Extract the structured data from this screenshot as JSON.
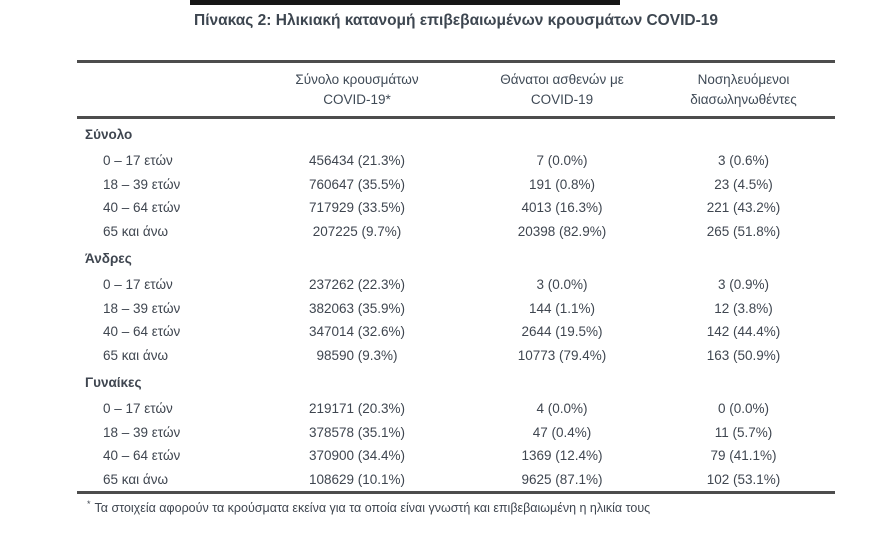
{
  "page": {
    "title": "Πίνακας 2: Ηλικιακή κατανομή επιβεβαιωμένων κρουσμάτων COVID-19",
    "footnote_marker": "*",
    "footnote": "Τα στοιχεία αφορούν τα κρούσματα εκείνα για τα οποία είναι γνωστή και επιβεβαιωμένη η ηλικία τους"
  },
  "colors": {
    "text": "#3f4650",
    "rule": "#4d4d4d",
    "top_bar": "#161616",
    "background": "#ffffff"
  },
  "table": {
    "columns": [
      {
        "line1": "Σύνολο κρουσμάτων",
        "line2": "COVID-19*"
      },
      {
        "line1": "Θάνατοι ασθενών με",
        "line2": "COVID-19"
      },
      {
        "line1": "Νοσηλευόμενοι",
        "line2": "διασωληνωθέντες"
      }
    ],
    "sections": [
      {
        "label": "Σύνολο",
        "rows": [
          {
            "label": "0 – 17 ετών",
            "cases": "456434 (21.3%)",
            "deaths": "7 (0.0%)",
            "intubated": "3 (0.6%)"
          },
          {
            "label": "18 – 39 ετών",
            "cases": "760647 (35.5%)",
            "deaths": "191 (0.8%)",
            "intubated": "23 (4.5%)"
          },
          {
            "label": "40 – 64 ετών",
            "cases": "717929 (33.5%)",
            "deaths": "4013 (16.3%)",
            "intubated": "221 (43.2%)"
          },
          {
            "label": "65 και άνω",
            "cases": "207225 (9.7%)",
            "deaths": "20398 (82.9%)",
            "intubated": "265 (51.8%)"
          }
        ]
      },
      {
        "label": "Άνδρες",
        "rows": [
          {
            "label": "0 – 17 ετών",
            "cases": "237262 (22.3%)",
            "deaths": "3 (0.0%)",
            "intubated": "3 (0.9%)"
          },
          {
            "label": "18 – 39 ετών",
            "cases": "382063 (35.9%)",
            "deaths": "144 (1.1%)",
            "intubated": "12 (3.8%)"
          },
          {
            "label": "40 – 64 ετών",
            "cases": "347014 (32.6%)",
            "deaths": "2644 (19.5%)",
            "intubated": "142 (44.4%)"
          },
          {
            "label": "65 και άνω",
            "cases": "98590 (9.3%)",
            "deaths": "10773 (79.4%)",
            "intubated": "163 (50.9%)"
          }
        ]
      },
      {
        "label": "Γυναίκες",
        "rows": [
          {
            "label": "0 – 17 ετών",
            "cases": "219171 (20.3%)",
            "deaths": "4 (0.0%)",
            "intubated": "0 (0.0%)"
          },
          {
            "label": "18 – 39 ετών",
            "cases": "378578 (35.1%)",
            "deaths": "47 (0.4%)",
            "intubated": "11 (5.7%)"
          },
          {
            "label": "40 – 64 ετών",
            "cases": "370900 (34.4%)",
            "deaths": "1369 (12.4%)",
            "intubated": "79 (41.1%)"
          },
          {
            "label": "65 και άνω",
            "cases": "108629 (10.1%)",
            "deaths": "9625 (87.1%)",
            "intubated": "102 (53.1%)"
          }
        ]
      }
    ]
  }
}
